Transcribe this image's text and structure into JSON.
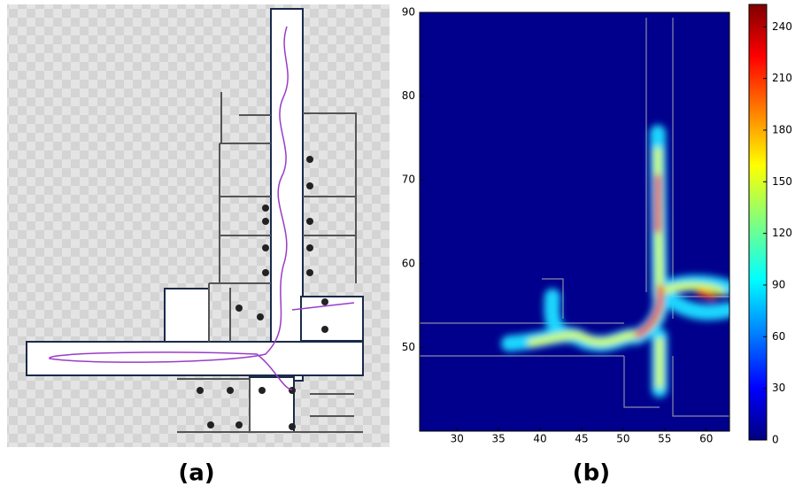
{
  "panels": [
    {
      "label": "(a)"
    },
    {
      "label": "(b)"
    }
  ],
  "chart_data": {
    "type": "heatmap",
    "xlim": [
      25.5,
      62.8
    ],
    "xticks": [
      30,
      35,
      40,
      45,
      50,
      55,
      60
    ],
    "ylim": [
      40,
      90
    ],
    "yticks": [
      50,
      60,
      70,
      80,
      90
    ],
    "clim": [
      0,
      253
    ],
    "cticks": [
      0,
      30,
      60,
      90,
      120,
      150,
      180,
      210,
      240
    ],
    "background": "#00008c"
  }
}
